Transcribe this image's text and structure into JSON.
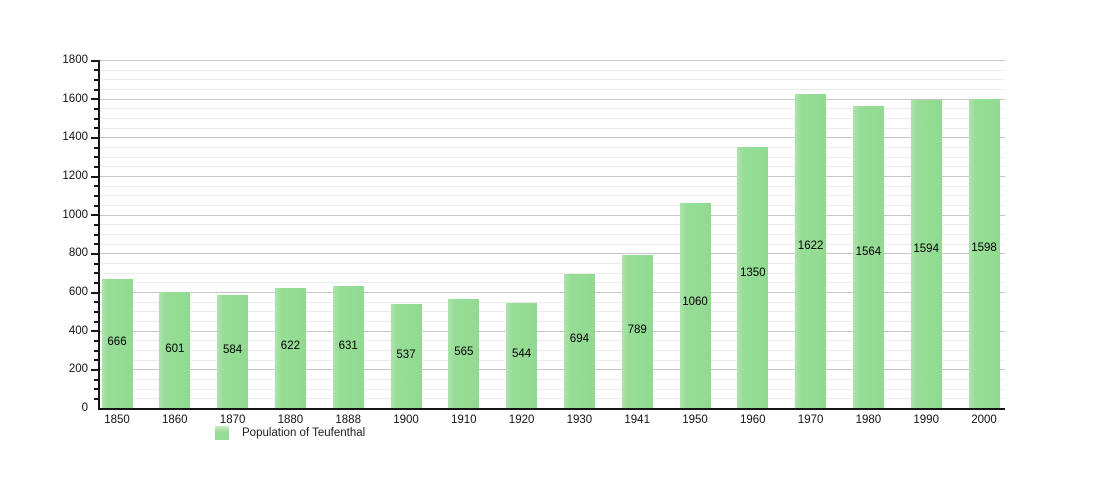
{
  "chart_data": {
    "type": "bar",
    "title": "",
    "categories": [
      "1850",
      "1860",
      "1870",
      "1880",
      "1888",
      "1900",
      "1910",
      "1920",
      "1930",
      "1941",
      "1950",
      "1960",
      "1970",
      "1980",
      "1990",
      "2000"
    ],
    "values": [
      666,
      601,
      584,
      622,
      631,
      537,
      565,
      544,
      694,
      789,
      1060,
      1350,
      1622,
      1564,
      1594,
      1598
    ],
    "series_name": "Population of Teufenthal",
    "xlabel": "",
    "ylabel": "",
    "ylim": [
      0,
      1800
    ],
    "y_major_step": 200,
    "y_minor_step": 50,
    "y_tick_labels": [
      "0",
      "200",
      "400",
      "600",
      "800",
      "1000",
      "1200",
      "1400",
      "1600",
      "1800"
    ],
    "grid": "on",
    "legend_position": "bottom-left",
    "bar_color": "#96dc96",
    "bar_label_color": "#000000",
    "axis_color": "#161616",
    "major_grid_color": "#c6c6c6",
    "minor_grid_color": "#ededed",
    "background_color": "#ffffff"
  },
  "legend": {
    "label": "Population of Teufenthal",
    "swatch_color": "#96dc96"
  }
}
